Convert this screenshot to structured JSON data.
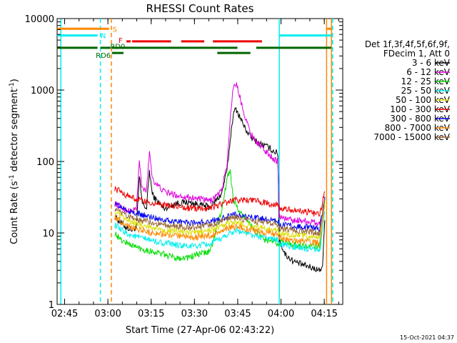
{
  "chart_data": {
    "type": "line",
    "title": "RHESSI Count Rates",
    "xlabel": "Start Time (27-Apr-06 02:43:22)",
    "ylabel_main": "Count Rate (s",
    "ylabel_sup": "-1",
    "ylabel_tail": " detector segment",
    "ylabel_sup2": "-1",
    "ylabel_close": ")",
    "y_scale": "log",
    "ylim": [
      1,
      10000
    ],
    "xlim_minutes": [
      -1,
      98
    ],
    "x_ticks": [
      {
        "label": "02:45",
        "t": 1.6
      },
      {
        "label": "03:00",
        "t": 16.6
      },
      {
        "label": "03:15",
        "t": 31.6
      },
      {
        "label": "03:30",
        "t": 46.6
      },
      {
        "label": "03:45",
        "t": 61.6
      },
      {
        "label": "04:00",
        "t": 76.6
      },
      {
        "label": "04:15",
        "t": 91.6
      }
    ],
    "y_ticks": [
      {
        "label": "1",
        "v": 1
      },
      {
        "label": "10",
        "v": 10
      },
      {
        "label": "100",
        "v": 100
      },
      {
        "label": "1000",
        "v": 1000
      },
      {
        "label": "10000",
        "v": 10000
      }
    ],
    "legend_title_1": "Det 1f,3f,4f,5f,6f,9f,",
    "legend_title_2": "FDecim 1, Att 0",
    "timestamp": "15-Oct-2021 04:37",
    "legend": [
      {
        "label": "3 - 6 keV",
        "color": "#000000"
      },
      {
        "label": "6 - 12 keV",
        "color": "#dd00dd"
      },
      {
        "label": "12 - 25 keV",
        "color": "#00dd00"
      },
      {
        "label": "25 - 50 keV",
        "color": "#00eeee"
      },
      {
        "label": "50 - 100 keV",
        "color": "#dddd00"
      },
      {
        "label": "100 - 300 keV",
        "color": "#ee0000"
      },
      {
        "label": "300 - 800 keV",
        "color": "#0000ee"
      },
      {
        "label": "800 - 7000 keV",
        "color": "#ff8800"
      },
      {
        "label": "7000 - 15000 keV",
        "color": "#996633"
      }
    ],
    "series": [
      {
        "name": "3 - 6 keV",
        "color": "#000000",
        "points": [
          [
            19,
            17
          ],
          [
            21,
            14
          ],
          [
            23,
            12
          ],
          [
            25,
            11
          ],
          [
            26.5,
            12
          ],
          [
            27.5,
            60
          ],
          [
            28.5,
            26
          ],
          [
            30,
            22
          ],
          [
            31,
            75
          ],
          [
            32,
            35
          ],
          [
            33,
            30
          ],
          [
            36,
            22
          ],
          [
            40,
            26
          ],
          [
            44,
            27
          ],
          [
            48,
            25
          ],
          [
            52,
            23
          ],
          [
            56,
            35
          ],
          [
            58,
            80
          ],
          [
            59,
            200
          ],
          [
            60,
            450
          ],
          [
            61,
            550
          ],
          [
            62,
            450
          ],
          [
            64,
            300
          ],
          [
            66,
            220
          ],
          [
            69,
            180
          ],
          [
            72,
            160
          ],
          [
            74,
            140
          ],
          [
            75.5,
            130
          ],
          [
            76,
            8
          ],
          [
            78,
            5
          ],
          [
            81,
            4
          ],
          [
            84,
            3.6
          ],
          [
            88,
            3.2
          ],
          [
            90,
            3
          ],
          [
            91,
            3.5
          ],
          [
            91.8,
            15
          ]
        ]
      },
      {
        "name": "6 - 12 keV",
        "color": "#dd00dd",
        "points": [
          [
            19,
            26
          ],
          [
            21,
            23
          ],
          [
            23,
            21
          ],
          [
            25,
            20
          ],
          [
            26.5,
            22
          ],
          [
            27.5,
            100
          ],
          [
            28.5,
            40
          ],
          [
            30,
            40
          ],
          [
            31,
            140
          ],
          [
            32,
            60
          ],
          [
            33,
            50
          ],
          [
            36,
            38
          ],
          [
            40,
            34
          ],
          [
            44,
            32
          ],
          [
            48,
            30
          ],
          [
            52,
            28
          ],
          [
            56,
            38
          ],
          [
            58,
            100
          ],
          [
            59,
            400
          ],
          [
            60,
            1100
          ],
          [
            61,
            1250
          ],
          [
            62,
            900
          ],
          [
            64,
            450
          ],
          [
            66,
            250
          ],
          [
            69,
            170
          ],
          [
            72,
            130
          ],
          [
            74,
            110
          ],
          [
            75.5,
            100
          ],
          [
            76,
            17
          ],
          [
            78,
            16
          ],
          [
            81,
            15
          ],
          [
            84,
            15
          ],
          [
            88,
            14
          ],
          [
            90,
            14
          ],
          [
            91,
            15
          ],
          [
            91.8,
            32
          ]
        ]
      },
      {
        "name": "12 - 25 keV",
        "color": "#00dd00",
        "points": [
          [
            19,
            10
          ],
          [
            21,
            8
          ],
          [
            24,
            7
          ],
          [
            28,
            6
          ],
          [
            32,
            5.5
          ],
          [
            36,
            5
          ],
          [
            40,
            4.5
          ],
          [
            44,
            4.5
          ],
          [
            48,
            5
          ],
          [
            52,
            5.5
          ],
          [
            56,
            20
          ],
          [
            58,
            60
          ],
          [
            59,
            78
          ],
          [
            60,
            30
          ],
          [
            62,
            20
          ],
          [
            65,
            15
          ],
          [
            68,
            10
          ],
          [
            71,
            8
          ],
          [
            74,
            7.5
          ],
          [
            75.5,
            7
          ],
          [
            76,
            7.5
          ],
          [
            80,
            7
          ],
          [
            85,
            6.5
          ],
          [
            90,
            6.5
          ],
          [
            91.8,
            30
          ]
        ]
      },
      {
        "name": "25 - 50 keV",
        "color": "#00eeee",
        "points": [
          [
            19,
            13
          ],
          [
            21,
            11
          ],
          [
            24,
            9.5
          ],
          [
            28,
            8.5
          ],
          [
            32,
            7.8
          ],
          [
            36,
            7.2
          ],
          [
            40,
            6.8
          ],
          [
            44,
            6.5
          ],
          [
            48,
            6.6
          ],
          [
            52,
            7
          ],
          [
            55,
            8
          ],
          [
            58,
            9.5
          ],
          [
            61,
            11
          ],
          [
            64,
            10
          ],
          [
            68,
            9
          ],
          [
            72,
            8.5
          ],
          [
            75.5,
            8
          ],
          [
            76,
            7
          ],
          [
            80,
            6.5
          ],
          [
            85,
            6
          ],
          [
            90,
            5.5
          ],
          [
            91.8,
            20
          ]
        ]
      },
      {
        "name": "50 - 100 keV",
        "color": "#dddd00",
        "points": [
          [
            19,
            20
          ],
          [
            21,
            17
          ],
          [
            24,
            14.5
          ],
          [
            28,
            13
          ],
          [
            32,
            12
          ],
          [
            36,
            11
          ],
          [
            40,
            10.5
          ],
          [
            44,
            10
          ],
          [
            48,
            10.2
          ],
          [
            52,
            10.8
          ],
          [
            55,
            12
          ],
          [
            58,
            13.5
          ],
          [
            61,
            14
          ],
          [
            64,
            13
          ],
          [
            68,
            12
          ],
          [
            72,
            11.5
          ],
          [
            75.5,
            11
          ],
          [
            76,
            10
          ],
          [
            80,
            9.5
          ],
          [
            85,
            9
          ],
          [
            90,
            8.8
          ],
          [
            91.8,
            26
          ]
        ]
      },
      {
        "name": "100 - 300 keV",
        "color": "#ee0000",
        "points": [
          [
            19,
            42
          ],
          [
            21,
            38
          ],
          [
            23,
            34
          ],
          [
            26,
            30
          ],
          [
            30,
            27
          ],
          [
            34,
            25
          ],
          [
            38,
            24
          ],
          [
            42,
            23
          ],
          [
            46,
            22
          ],
          [
            50,
            22
          ],
          [
            54,
            24
          ],
          [
            58,
            27
          ],
          [
            61,
            29
          ],
          [
            64,
            29
          ],
          [
            68,
            28
          ],
          [
            72,
            26
          ],
          [
            75.5,
            25
          ],
          [
            76,
            22
          ],
          [
            80,
            21
          ],
          [
            85,
            20
          ],
          [
            90,
            18
          ],
          [
            91.8,
            38
          ]
        ]
      },
      {
        "name": "300 - 800 keV",
        "color": "#0000ee",
        "points": [
          [
            19,
            26
          ],
          [
            21,
            23
          ],
          [
            24,
            20
          ],
          [
            28,
            18
          ],
          [
            32,
            16.5
          ],
          [
            36,
            15.5
          ],
          [
            40,
            14.5
          ],
          [
            44,
            14
          ],
          [
            48,
            14
          ],
          [
            52,
            14.5
          ],
          [
            55,
            15.5
          ],
          [
            58,
            17
          ],
          [
            61,
            18
          ],
          [
            64,
            17
          ],
          [
            68,
            16
          ],
          [
            72,
            15.5
          ],
          [
            75.5,
            15
          ],
          [
            76,
            13
          ],
          [
            80,
            12.5
          ],
          [
            85,
            12
          ],
          [
            90,
            11.5
          ],
          [
            91.8,
            32
          ]
        ]
      },
      {
        "name": "800 - 7000 keV",
        "color": "#ff8800",
        "points": [
          [
            19,
            17
          ],
          [
            21,
            14.5
          ],
          [
            24,
            12.5
          ],
          [
            28,
            11
          ],
          [
            32,
            10
          ],
          [
            36,
            9.5
          ],
          [
            40,
            9
          ],
          [
            44,
            8.7
          ],
          [
            48,
            8.8
          ],
          [
            52,
            9.2
          ],
          [
            55,
            10
          ],
          [
            58,
            11.5
          ],
          [
            61,
            12.5
          ],
          [
            64,
            11.5
          ],
          [
            68,
            10.5
          ],
          [
            72,
            10
          ],
          [
            75.5,
            9.5
          ],
          [
            76,
            8.5
          ],
          [
            80,
            8
          ],
          [
            85,
            7.5
          ],
          [
            90,
            7.2
          ],
          [
            91.8,
            24
          ]
        ]
      },
      {
        "name": "7000 - 15000 keV",
        "color": "#996633",
        "points": [
          [
            19,
            22
          ],
          [
            21,
            19
          ],
          [
            24,
            16.5
          ],
          [
            28,
            15
          ],
          [
            32,
            14
          ],
          [
            36,
            13
          ],
          [
            40,
            12.5
          ],
          [
            44,
            12
          ],
          [
            48,
            12.2
          ],
          [
            52,
            12.8
          ],
          [
            55,
            14
          ],
          [
            58,
            15.5
          ],
          [
            61,
            16.5
          ],
          [
            64,
            15.5
          ],
          [
            68,
            14.5
          ],
          [
            72,
            14
          ],
          [
            75.5,
            13.5
          ],
          [
            76,
            11.5
          ],
          [
            80,
            11
          ],
          [
            85,
            10.5
          ],
          [
            90,
            10
          ],
          [
            91.8,
            30
          ]
        ]
      }
    ],
    "flag_labels": {
      "S": "S",
      "N": "N",
      "F": "F",
      "RD6": "RD6",
      "RD0": "RD0"
    },
    "flag_bars": [
      {
        "label": "S",
        "color": "#ff8800",
        "y": 7200,
        "segments": [
          [
            -1,
            17
          ],
          [
            92.5,
            94
          ]
        ]
      },
      {
        "label": "N",
        "color": "#00eeee",
        "y": 5800,
        "segments": [
          [
            -1,
            13
          ],
          [
            76,
            94
          ]
        ]
      },
      {
        "label": "F",
        "color": "#ee0000",
        "y": 4800,
        "segments": [
          [
            23,
            24.5
          ],
          [
            25,
            38.5
          ],
          [
            42,
            50
          ],
          [
            53,
            70
          ]
        ]
      },
      {
        "label": "RD0",
        "color": "#006600",
        "y": 3900,
        "segments": [
          [
            -1,
            13
          ],
          [
            14,
            17.5
          ],
          [
            18,
            61.5
          ],
          [
            68,
            94
          ]
        ]
      },
      {
        "label": "RD6",
        "color": "#006600",
        "y": 3300,
        "segments": [
          [
            18,
            22
          ],
          [
            54.5,
            66
          ]
        ]
      }
    ],
    "vlines": [
      {
        "t": 0.3,
        "color": "#00eeee",
        "style": "solid"
      },
      {
        "t": 14,
        "color": "#00eeee",
        "style": "dashed"
      },
      {
        "t": 17.8,
        "color": "#ff8800",
        "style": "dashed"
      },
      {
        "t": 76,
        "color": "#00eeee",
        "style": "solid"
      },
      {
        "t": 92.4,
        "color": "#ff8800",
        "style": "solid"
      },
      {
        "t": 94.1,
        "color": "#ff8800",
        "style": "solid"
      },
      {
        "t": 94.5,
        "color": "#00eeee",
        "style": "dashed"
      }
    ]
  }
}
